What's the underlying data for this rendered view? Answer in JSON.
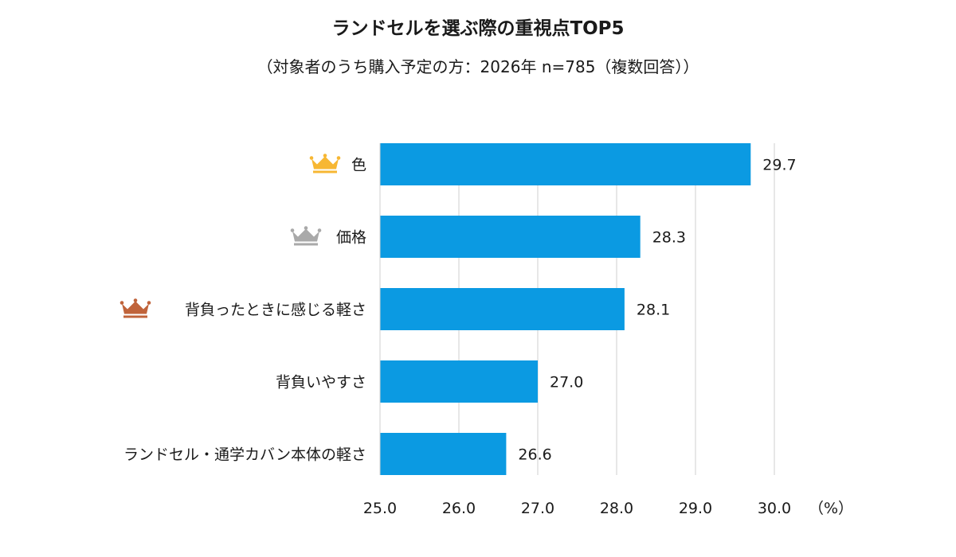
{
  "chart_data": {
    "type": "bar",
    "orientation": "horizontal",
    "title": "ランドセルを選ぶ際の重視点TOP5",
    "subtitle": "（対象者のうち購入予定の方：2026年 n=785（複数回答））",
    "categories": [
      "色",
      "価格",
      "背負ったときに感じる軽さ",
      "背負いやすさ",
      "ランドセル・通学カバン本体の軽さ"
    ],
    "values": [
      29.7,
      28.3,
      28.1,
      27.0,
      26.6
    ],
    "value_labels": [
      "29.7",
      "28.3",
      "28.1",
      "27.0",
      "26.6"
    ],
    "xlim": [
      25.0,
      30.0
    ],
    "xticks": [
      25.0,
      26.0,
      27.0,
      28.0,
      29.0,
      30.0
    ],
    "xtick_labels": [
      "25.0",
      "26.0",
      "27.0",
      "28.0",
      "29.0",
      "30.0"
    ],
    "x_unit": "（%）",
    "grid": "vertical",
    "legend": "none",
    "bar_color": "#0b9ae2",
    "rank_icons": [
      {
        "rank": 1,
        "icon": "gold-crown-icon",
        "color": "#f7b733"
      },
      {
        "rank": 2,
        "icon": "silver-crown-icon",
        "color": "#a9a9a9"
      },
      {
        "rank": 3,
        "icon": "bronze-crown-icon",
        "color": "#c0633a"
      }
    ]
  }
}
